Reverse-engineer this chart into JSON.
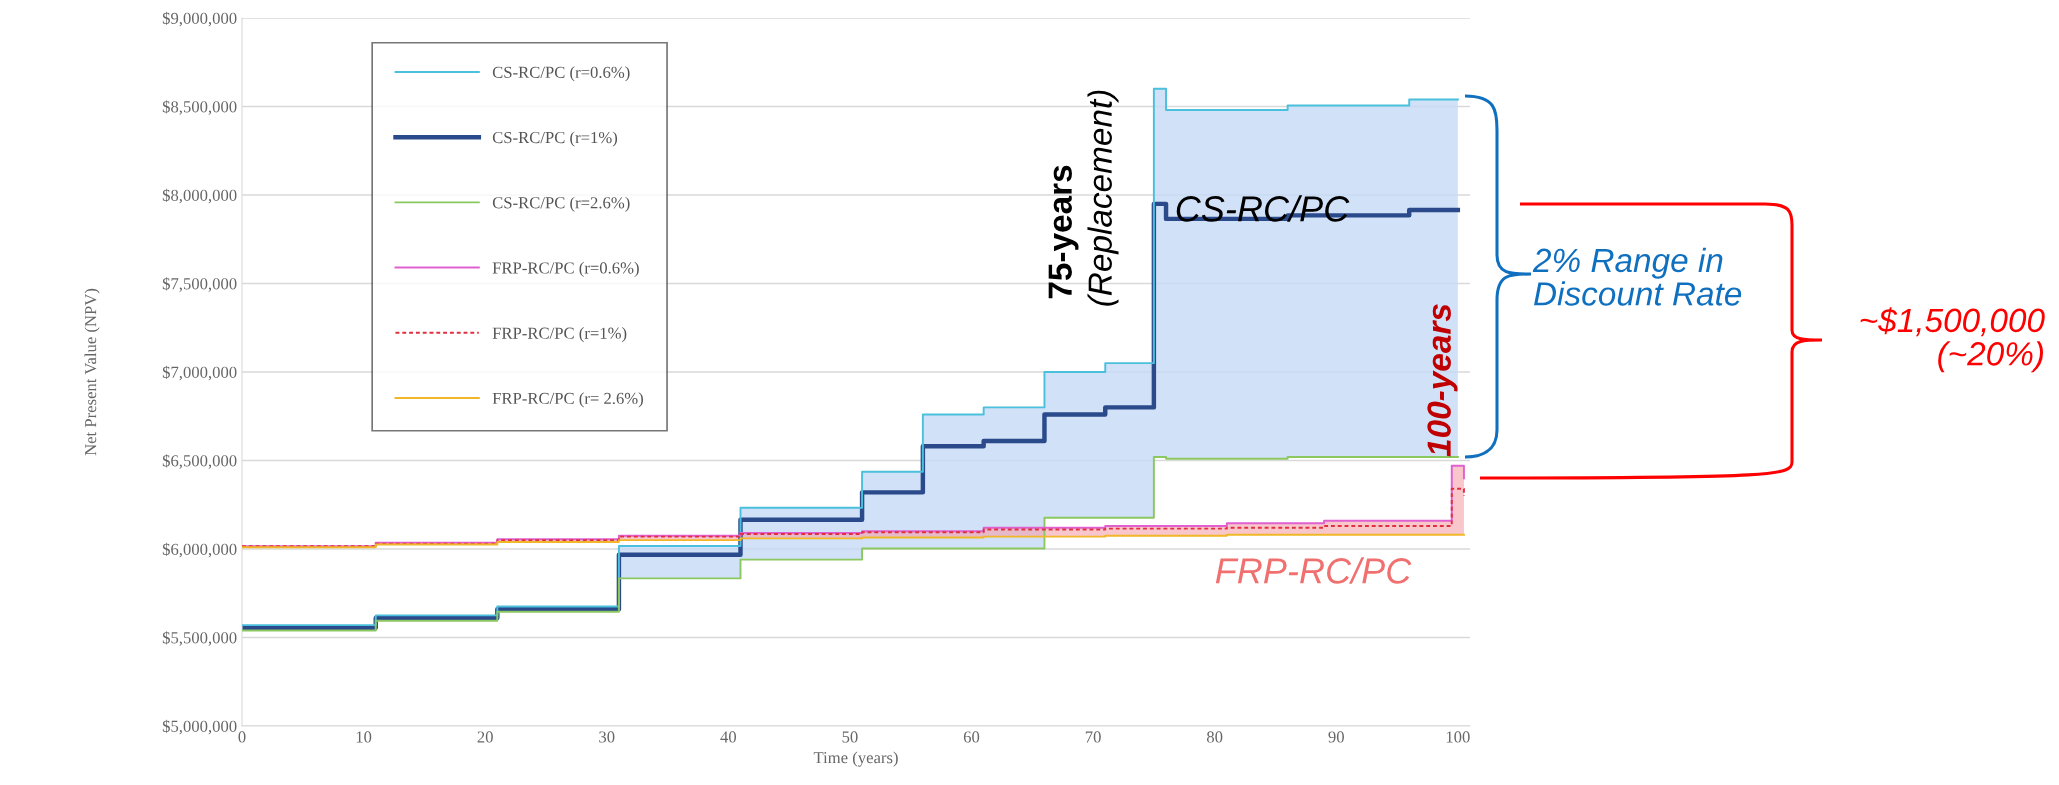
{
  "chart_data": {
    "type": "step",
    "xlabel": "Time (years)",
    "ylabel": "Net Present Value (NPV)",
    "xlim": [
      0,
      101
    ],
    "xticks": [
      0,
      10,
      20,
      30,
      40,
      50,
      60,
      70,
      80,
      90,
      100
    ],
    "ylim": [
      5000000,
      9000000
    ],
    "yticks": [
      {
        "value": 5000000,
        "label": "$5,000,000"
      },
      {
        "value": 5500000,
        "label": "$5,500,000"
      },
      {
        "value": 6000000,
        "label": "$6,000,000"
      },
      {
        "value": 6500000,
        "label": "$6,500,000"
      },
      {
        "value": 7000000,
        "label": "$7,000,000"
      },
      {
        "value": 7500000,
        "label": "$7,500,000"
      },
      {
        "value": 8000000,
        "label": "$8,000,000"
      },
      {
        "value": 8500000,
        "label": "$8,500,000"
      },
      {
        "value": 9000000,
        "label": "$9,000,000"
      }
    ],
    "grid": "y",
    "legend": "top left",
    "series": [
      {
        "name": "CS-RC/PC (r=0.6%)",
        "color": "#4bc0dc",
        "x": [
          0,
          11,
          21,
          31,
          41,
          51,
          56,
          61,
          66,
          71,
          75,
          76,
          86,
          96,
          100
        ],
        "values": [
          5570000,
          5625000,
          5675000,
          6017000,
          6233000,
          6436000,
          6760000,
          6800000,
          7000000,
          7050000,
          8600000,
          8480000,
          8506000,
          8540000,
          8540000
        ]
      },
      {
        "name": "CS-RC/PC (r=1%)",
        "color": "#2a4a8c",
        "x": [
          0,
          11,
          21,
          31,
          41,
          51,
          56,
          61,
          66,
          71,
          75,
          76,
          86,
          96,
          100
        ],
        "values": [
          5555000,
          5610000,
          5660000,
          5967000,
          6165000,
          6320000,
          6580000,
          6610000,
          6760000,
          6800000,
          7950000,
          7865000,
          7885000,
          7915000,
          7915000
        ],
        "lower": [
          5540000,
          5595000,
          5645000,
          5834000,
          5940000,
          6003000,
          6003000,
          6003000,
          6177000,
          6177000,
          6520000,
          6510000,
          6520000,
          6520000,
          6520000
        ],
        "upper": [
          5570000,
          5625000,
          5675000,
          6017000,
          6233000,
          6436000,
          6760000,
          6800000,
          7000000,
          7050000,
          8600000,
          8480000,
          8506000,
          8540000,
          8540000
        ]
      },
      {
        "name": "CS-RC/PC (r=2.6%)",
        "color": "#8cc860",
        "x": [
          0,
          11,
          21,
          31,
          41,
          51,
          56,
          61,
          66,
          71,
          75,
          76,
          86,
          96,
          100
        ],
        "values": [
          5540000,
          5595000,
          5645000,
          5834000,
          5940000,
          6003000,
          6003000,
          6003000,
          6177000,
          6177000,
          6520000,
          6510000,
          6520000,
          6520000,
          6520000
        ]
      },
      {
        "name": "FRP-RC/PC (r=0.6%)",
        "color": "#e060d0",
        "x": [
          0,
          11,
          21,
          31,
          41,
          51,
          61,
          71,
          81,
          89,
          99.5,
          100.5
        ],
        "values": [
          6015000,
          6035000,
          6055000,
          6075000,
          6090000,
          6100000,
          6120000,
          6130000,
          6145000,
          6160000,
          6470000,
          6400000
        ]
      },
      {
        "name": "FRP-RC/PC (r=1%)",
        "color": "#e03040",
        "line_style": "dashed",
        "x": [
          0,
          11,
          21,
          31,
          41,
          51,
          61,
          71,
          81,
          89,
          99.5,
          100.5
        ],
        "values": [
          6015000,
          6030000,
          6050000,
          6070000,
          6085000,
          6095000,
          6110000,
          6115000,
          6120000,
          6130000,
          6340000,
          6300000
        ],
        "lower": [
          6010000,
          6025000,
          6040000,
          6050000,
          6060000,
          6065000,
          6070000,
          6075000,
          6080000,
          6080000,
          6080000,
          6080000
        ],
        "upper": [
          6015000,
          6035000,
          6055000,
          6075000,
          6090000,
          6100000,
          6120000,
          6130000,
          6145000,
          6160000,
          6470000,
          6400000
        ]
      },
      {
        "name": "FRP-RC/PC (r= 2.6%)",
        "color": "#f0b828",
        "x": [
          0,
          11,
          21,
          31,
          41,
          51,
          61,
          71,
          81,
          89,
          99.5,
          100.5
        ],
        "values": [
          6010000,
          6025000,
          6040000,
          6050000,
          6060000,
          6065000,
          6070000,
          6075000,
          6080000,
          6080000,
          6080000,
          6080000
        ]
      }
    ],
    "annotations": [
      "75-years",
      "(Replacement)",
      "CS-RC/PC",
      "100-years",
      "FRP-RC/PC",
      "2% Range in\nDiscount Rate",
      "~$1,500,000\n(~20%)"
    ]
  }
}
